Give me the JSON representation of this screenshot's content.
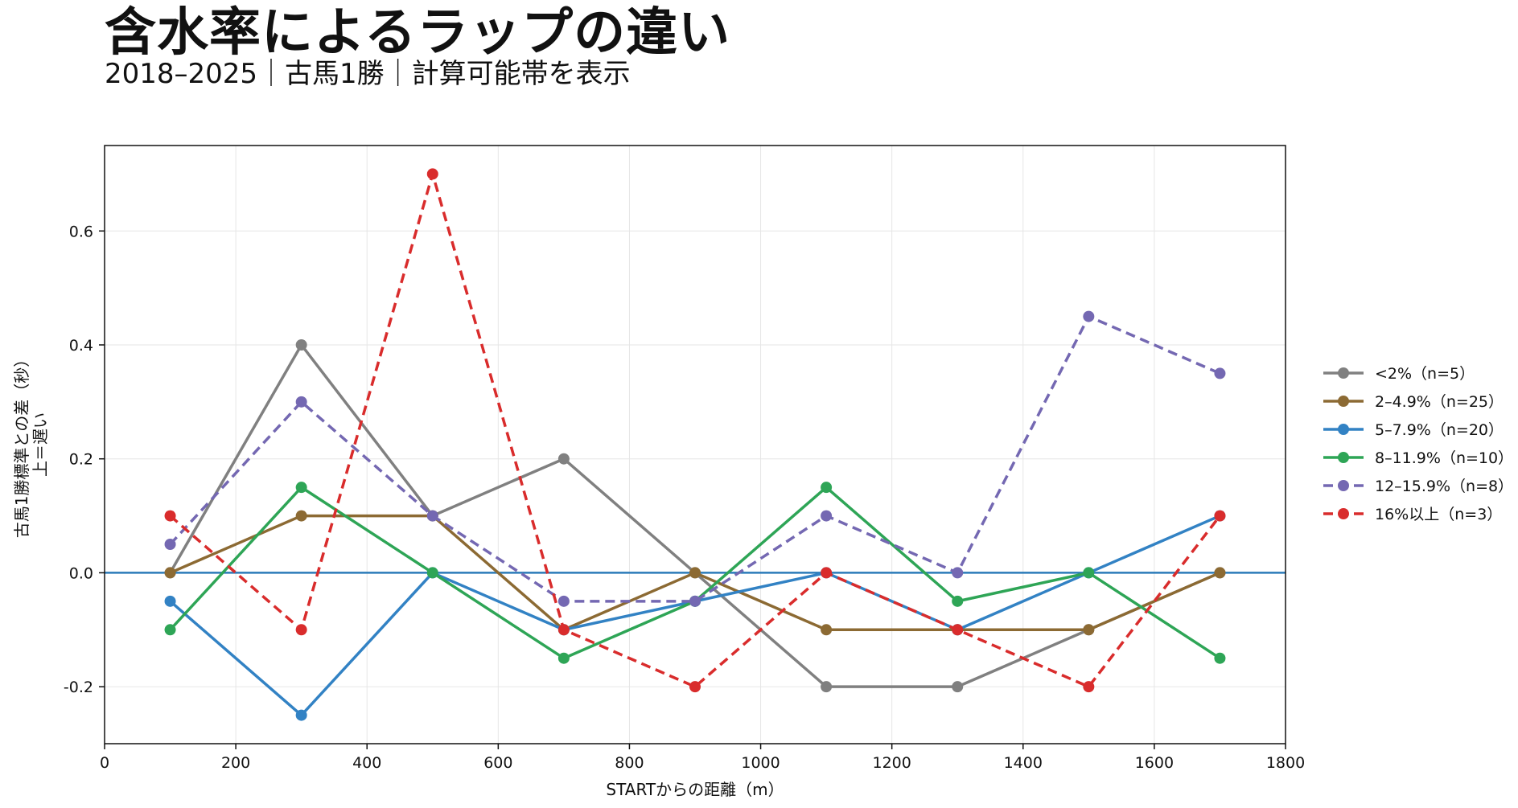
{
  "title": "含水率によるラップの違い",
  "subtitle": "2018–2025｜古馬1勝｜計算可能帯を表示",
  "chart_data": {
    "type": "line",
    "title": "含水率によるラップの違い",
    "subtitle": "2018–2025｜古馬1勝｜計算可能帯を表示",
    "xlabel": "STARTからの距離（m）",
    "ylabel_lines": [
      "古馬1勝標準との差（秒）",
      "上＝遅い"
    ],
    "xlim": [
      0,
      1800
    ],
    "ylim": [
      -0.3,
      0.75
    ],
    "xticks": [
      0,
      200,
      400,
      600,
      800,
      1000,
      1200,
      1400,
      1600,
      1800
    ],
    "yticks": [
      -0.2,
      0.0,
      0.2,
      0.4,
      0.6
    ],
    "ytick_labels": [
      "-0.2",
      "0.0",
      "0.2",
      "0.4",
      "0.6"
    ],
    "grid": true,
    "legend_position": "right",
    "reference_line": {
      "y": 0.0,
      "color": "#2b7bb9"
    },
    "x": [
      100,
      300,
      500,
      700,
      900,
      1100,
      1300,
      1500,
      1700
    ],
    "series": [
      {
        "name": "<2%（n=5）",
        "color": "#808080",
        "dash": false,
        "values": [
          0.0,
          0.4,
          0.1,
          0.2,
          0.0,
          -0.2,
          -0.2,
          -0.1,
          0.0
        ]
      },
      {
        "name": "2–4.9%（n=25）",
        "color": "#8c6a33",
        "dash": false,
        "values": [
          0.0,
          0.1,
          0.1,
          -0.1,
          0.0,
          -0.1,
          -0.1,
          -0.1,
          0.0
        ]
      },
      {
        "name": "5–7.9%（n=20）",
        "color": "#3282c4",
        "dash": false,
        "values": [
          -0.05,
          -0.25,
          0.0,
          -0.1,
          -0.05,
          0.0,
          -0.1,
          0.0,
          0.1
        ]
      },
      {
        "name": "8–11.9%（n=10）",
        "color": "#2ea556",
        "dash": false,
        "values": [
          -0.1,
          0.15,
          0.0,
          -0.15,
          -0.05,
          0.15,
          -0.05,
          0.0,
          -0.15
        ]
      },
      {
        "name": "12–15.9%（n=8）",
        "color": "#7468b2",
        "dash": true,
        "values": [
          0.05,
          0.3,
          0.1,
          -0.05,
          -0.05,
          0.1,
          0.0,
          0.45,
          0.35
        ]
      },
      {
        "name": "16%以上（n=3）",
        "color": "#d92c2c",
        "dash": true,
        "values": [
          0.1,
          -0.1,
          0.7,
          -0.1,
          -0.2,
          0.0,
          -0.1,
          -0.2,
          0.1
        ]
      }
    ]
  }
}
